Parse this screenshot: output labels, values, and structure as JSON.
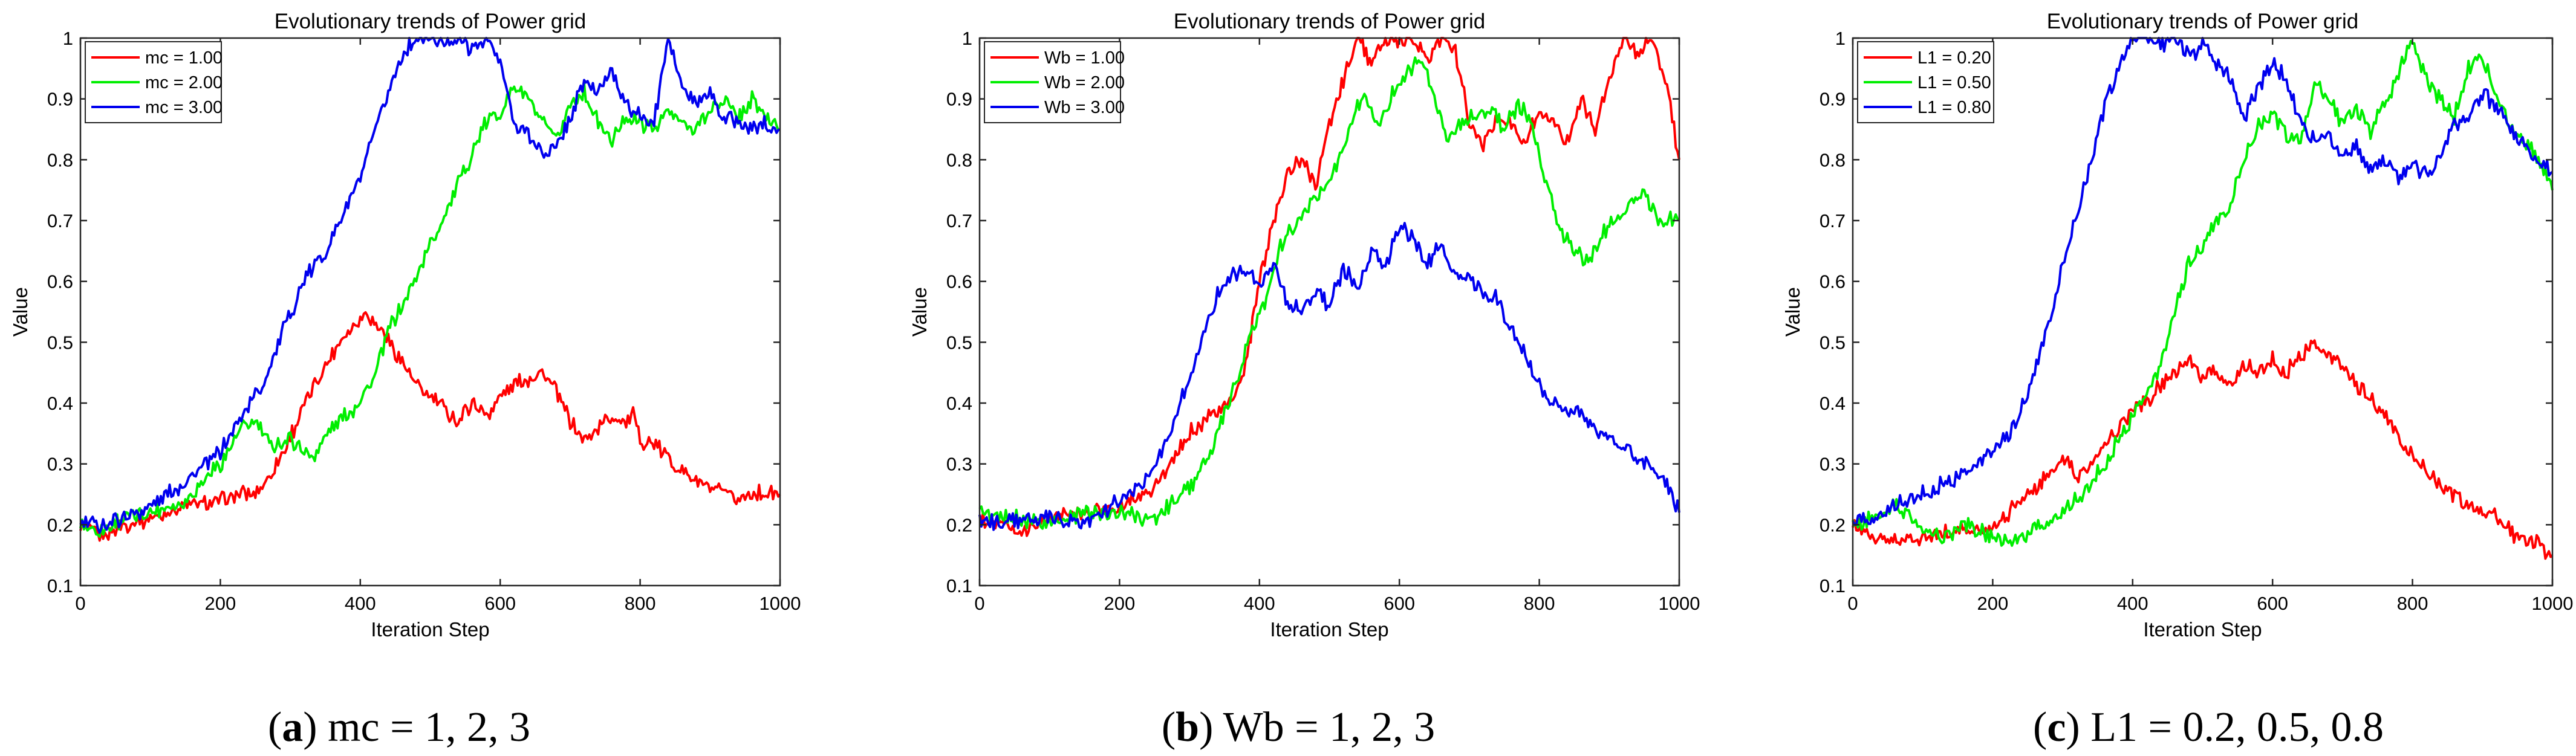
{
  "chart_data": [
    {
      "type": "line",
      "title": "Evolutionary trends of Power grid",
      "xlabel": "Iteration Step",
      "ylabel": "Value",
      "xlim": [
        0,
        1000
      ],
      "ylim": [
        0.1,
        1
      ],
      "xticks": [
        "0",
        "200",
        "400",
        "600",
        "800",
        "1000"
      ],
      "yticks": [
        "0.1",
        "0.2",
        "0.3",
        "0.4",
        "0.5",
        "0.6",
        "0.7",
        "0.8",
        "0.9",
        "1"
      ],
      "legend_position": "top-left",
      "caption": {
        "letter": "a",
        "text": " mc = 1, 2, 3"
      },
      "series": [
        {
          "name": "mc = 1.00",
          "color": "#ff0000",
          "x": [
            0,
            30,
            60,
            100,
            150,
            200,
            230,
            250,
            270,
            290,
            310,
            330,
            350,
            370,
            390,
            400,
            410,
            420,
            430,
            440,
            460,
            480,
            500,
            520,
            540,
            560,
            580,
            600,
            620,
            640,
            660,
            680,
            700,
            720,
            740,
            760,
            780,
            790,
            800,
            820,
            840,
            860,
            880,
            900,
            920,
            940,
            960,
            980,
            1000
          ],
          "y": [
            0.2,
            0.18,
            0.2,
            0.21,
            0.23,
            0.24,
            0.25,
            0.25,
            0.28,
            0.32,
            0.37,
            0.42,
            0.46,
            0.5,
            0.53,
            0.54,
            0.55,
            0.53,
            0.52,
            0.5,
            0.47,
            0.43,
            0.41,
            0.39,
            0.37,
            0.4,
            0.38,
            0.41,
            0.43,
            0.44,
            0.45,
            0.42,
            0.37,
            0.34,
            0.36,
            0.38,
            0.37,
            0.38,
            0.34,
            0.33,
            0.31,
            0.29,
            0.27,
            0.26,
            0.25,
            0.24,
            0.25,
            0.25,
            0.25
          ]
        },
        {
          "name": "mc = 2.00",
          "color": "#00ee00",
          "x": [
            0,
            30,
            60,
            100,
            150,
            200,
            230,
            250,
            270,
            300,
            330,
            360,
            390,
            420,
            440,
            460,
            480,
            500,
            520,
            540,
            560,
            580,
            600,
            620,
            640,
            660,
            680,
            700,
            720,
            740,
            760,
            780,
            800,
            820,
            840,
            860,
            880,
            900,
            920,
            940,
            960,
            980,
            1000
          ],
          "y": [
            0.2,
            0.19,
            0.21,
            0.22,
            0.24,
            0.3,
            0.36,
            0.37,
            0.33,
            0.34,
            0.31,
            0.36,
            0.39,
            0.44,
            0.52,
            0.56,
            0.61,
            0.66,
            0.71,
            0.76,
            0.81,
            0.86,
            0.88,
            0.92,
            0.9,
            0.86,
            0.83,
            0.89,
            0.91,
            0.86,
            0.83,
            0.87,
            0.86,
            0.85,
            0.88,
            0.86,
            0.85,
            0.88,
            0.9,
            0.87,
            0.9,
            0.87,
            0.85
          ]
        },
        {
          "name": "mc = 3.00",
          "color": "#0000ee",
          "x": [
            0,
            30,
            60,
            100,
            150,
            200,
            230,
            260,
            290,
            320,
            350,
            380,
            400,
            420,
            440,
            460,
            480,
            500,
            520,
            540,
            560,
            580,
            600,
            620,
            640,
            660,
            680,
            700,
            720,
            740,
            760,
            780,
            800,
            820,
            840,
            860,
            880,
            900,
            920,
            940,
            960,
            980,
            1000
          ],
          "y": [
            0.2,
            0.2,
            0.21,
            0.23,
            0.27,
            0.32,
            0.38,
            0.43,
            0.52,
            0.6,
            0.65,
            0.72,
            0.77,
            0.84,
            0.91,
            0.97,
            1.0,
            1.0,
            0.99,
            1.0,
            0.98,
            1.0,
            0.96,
            0.86,
            0.84,
            0.81,
            0.82,
            0.87,
            0.93,
            0.91,
            0.95,
            0.89,
            0.87,
            0.86,
            1.0,
            0.92,
            0.89,
            0.91,
            0.87,
            0.86,
            0.85,
            0.86,
            0.85
          ]
        }
      ]
    },
    {
      "type": "line",
      "title": "Evolutionary trends of Power grid",
      "xlabel": "Iteration Step",
      "ylabel": "Value",
      "xlim": [
        0,
        1000
      ],
      "ylim": [
        0.1,
        1
      ],
      "xticks": [
        "0",
        "200",
        "400",
        "600",
        "800",
        "1000"
      ],
      "yticks": [
        "0.1",
        "0.2",
        "0.3",
        "0.4",
        "0.5",
        "0.6",
        "0.7",
        "0.8",
        "0.9",
        "1"
      ],
      "legend_position": "top-left",
      "caption": {
        "letter": "b",
        "text": " Wb = 1, 2, 3"
      },
      "series": [
        {
          "name": "Wb = 1.00",
          "color": "#ff0000",
          "x": [
            0,
            30,
            60,
            100,
            150,
            200,
            250,
            280,
            300,
            330,
            360,
            380,
            400,
            420,
            440,
            460,
            480,
            500,
            520,
            540,
            560,
            580,
            600,
            620,
            640,
            660,
            680,
            700,
            720,
            740,
            760,
            780,
            800,
            820,
            840,
            860,
            880,
            900,
            920,
            940,
            960,
            980,
            1000
          ],
          "y": [
            0.21,
            0.2,
            0.19,
            0.21,
            0.22,
            0.23,
            0.26,
            0.31,
            0.35,
            0.38,
            0.4,
            0.46,
            0.6,
            0.7,
            0.78,
            0.8,
            0.76,
            0.86,
            0.93,
            1.0,
            0.96,
            1.0,
            0.99,
            1.0,
            0.96,
            1.0,
            0.98,
            0.86,
            0.82,
            0.87,
            0.86,
            0.83,
            0.88,
            0.86,
            0.83,
            0.9,
            0.85,
            0.93,
            1.0,
            0.97,
            1.0,
            0.93,
            0.8
          ]
        },
        {
          "name": "Wb = 2.00",
          "color": "#00ee00",
          "x": [
            0,
            30,
            60,
            100,
            150,
            200,
            250,
            300,
            330,
            360,
            390,
            410,
            430,
            450,
            470,
            490,
            510,
            530,
            550,
            570,
            590,
            610,
            630,
            650,
            670,
            690,
            710,
            730,
            750,
            770,
            790,
            810,
            830,
            850,
            870,
            890,
            910,
            930,
            950,
            970,
            1000
          ],
          "y": [
            0.22,
            0.21,
            0.21,
            0.2,
            0.22,
            0.22,
            0.21,
            0.26,
            0.32,
            0.41,
            0.52,
            0.57,
            0.66,
            0.69,
            0.72,
            0.75,
            0.79,
            0.86,
            0.91,
            0.85,
            0.91,
            0.94,
            0.97,
            0.9,
            0.83,
            0.86,
            0.87,
            0.88,
            0.85,
            0.89,
            0.86,
            0.76,
            0.68,
            0.65,
            0.63,
            0.68,
            0.7,
            0.72,
            0.75,
            0.7,
            0.7
          ]
        },
        {
          "name": "Wb = 3.00",
          "color": "#0000ee",
          "x": [
            0,
            30,
            60,
            100,
            150,
            200,
            230,
            260,
            280,
            300,
            320,
            340,
            360,
            380,
            400,
            420,
            440,
            460,
            480,
            500,
            520,
            540,
            560,
            580,
            600,
            620,
            640,
            660,
            680,
            700,
            720,
            740,
            760,
            780,
            800,
            820,
            840,
            860,
            880,
            900,
            920,
            940,
            960,
            980,
            1000
          ],
          "y": [
            0.21,
            0.2,
            0.21,
            0.21,
            0.2,
            0.24,
            0.26,
            0.32,
            0.38,
            0.44,
            0.51,
            0.58,
            0.61,
            0.62,
            0.59,
            0.63,
            0.56,
            0.55,
            0.58,
            0.56,
            0.62,
            0.59,
            0.65,
            0.62,
            0.69,
            0.67,
            0.63,
            0.66,
            0.6,
            0.61,
            0.58,
            0.57,
            0.52,
            0.48,
            0.43,
            0.4,
            0.39,
            0.38,
            0.36,
            0.34,
            0.33,
            0.31,
            0.3,
            0.27,
            0.22
          ]
        }
      ]
    },
    {
      "type": "line",
      "title": "Evolutionary trends of Power grid",
      "xlabel": "Iteration Step",
      "ylabel": "Value",
      "xlim": [
        0,
        1000
      ],
      "ylim": [
        0.1,
        1
      ],
      "xticks": [
        "0",
        "200",
        "400",
        "600",
        "800",
        "1000"
      ],
      "yticks": [
        "0.1",
        "0.2",
        "0.3",
        "0.4",
        "0.5",
        "0.6",
        "0.7",
        "0.8",
        "0.9",
        "1"
      ],
      "legend_position": "top-left",
      "caption": {
        "letter": "c",
        "text": " L1 = 0.2, 0.5, 0.8"
      },
      "series": [
        {
          "name": "L1 = 0.20",
          "color": "#ff0000",
          "x": [
            0,
            30,
            60,
            100,
            150,
            200,
            230,
            260,
            280,
            300,
            320,
            340,
            360,
            380,
            400,
            420,
            440,
            460,
            480,
            500,
            520,
            540,
            560,
            580,
            600,
            620,
            640,
            660,
            680,
            700,
            720,
            740,
            760,
            780,
            800,
            820,
            840,
            860,
            880,
            900,
            920,
            940,
            960,
            980,
            1000
          ],
          "y": [
            0.2,
            0.18,
            0.17,
            0.18,
            0.19,
            0.19,
            0.23,
            0.26,
            0.28,
            0.31,
            0.28,
            0.3,
            0.33,
            0.36,
            0.39,
            0.4,
            0.43,
            0.45,
            0.47,
            0.44,
            0.45,
            0.43,
            0.46,
            0.45,
            0.47,
            0.45,
            0.48,
            0.5,
            0.48,
            0.46,
            0.43,
            0.41,
            0.38,
            0.35,
            0.31,
            0.29,
            0.27,
            0.25,
            0.23,
            0.22,
            0.21,
            0.19,
            0.17,
            0.17,
            0.15
          ]
        },
        {
          "name": "L1 = 0.50",
          "color": "#00ee00",
          "x": [
            0,
            30,
            60,
            80,
            100,
            130,
            160,
            200,
            230,
            260,
            300,
            330,
            360,
            380,
            400,
            420,
            440,
            460,
            480,
            500,
            520,
            540,
            560,
            580,
            600,
            620,
            640,
            660,
            680,
            700,
            720,
            740,
            760,
            780,
            800,
            820,
            840,
            860,
            880,
            900,
            920,
            940,
            960,
            980,
            1000
          ],
          "y": [
            0.2,
            0.21,
            0.23,
            0.22,
            0.19,
            0.18,
            0.2,
            0.18,
            0.17,
            0.19,
            0.22,
            0.25,
            0.3,
            0.34,
            0.38,
            0.42,
            0.46,
            0.55,
            0.63,
            0.66,
            0.7,
            0.73,
            0.8,
            0.86,
            0.88,
            0.84,
            0.83,
            0.92,
            0.9,
            0.86,
            0.88,
            0.85,
            0.89,
            0.94,
            1.0,
            0.93,
            0.9,
            0.87,
            0.95,
            0.97,
            0.9,
            0.86,
            0.83,
            0.8,
            0.75
          ]
        },
        {
          "name": "L1 = 0.80",
          "color": "#0000ee",
          "x": [
            0,
            30,
            60,
            100,
            150,
            200,
            230,
            260,
            290,
            320,
            340,
            360,
            380,
            400,
            420,
            440,
            460,
            480,
            500,
            520,
            540,
            560,
            580,
            600,
            620,
            640,
            660,
            680,
            700,
            720,
            740,
            760,
            780,
            800,
            820,
            840,
            860,
            880,
            900,
            920,
            940,
            960,
            980,
            1000
          ],
          "y": [
            0.2,
            0.21,
            0.23,
            0.25,
            0.28,
            0.32,
            0.36,
            0.45,
            0.58,
            0.71,
            0.8,
            0.89,
            0.95,
            1.0,
            1.0,
            0.99,
            1.0,
            0.97,
            0.99,
            0.96,
            0.93,
            0.87,
            0.92,
            0.96,
            0.93,
            0.86,
            0.83,
            0.84,
            0.81,
            0.82,
            0.78,
            0.8,
            0.77,
            0.79,
            0.78,
            0.8,
            0.86,
            0.87,
            0.91,
            0.89,
            0.85,
            0.82,
            0.8,
            0.78
          ]
        }
      ]
    }
  ]
}
